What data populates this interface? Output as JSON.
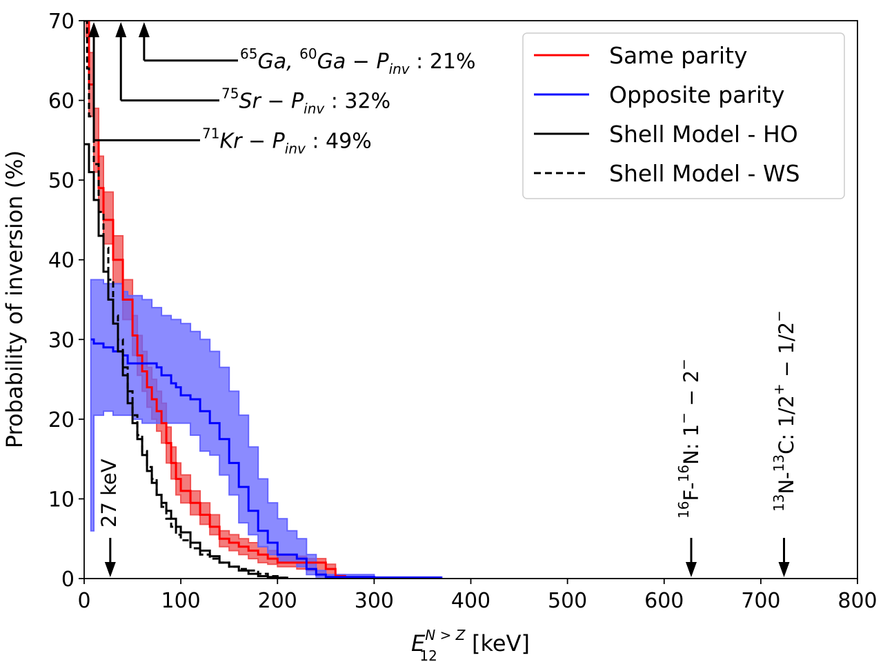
{
  "chart_data": {
    "type": "line",
    "xlabel": {
      "main": "E",
      "sup": "N > Z",
      "sub": "12",
      "unit": " [keV]"
    },
    "ylabel": "Probability of inversion (%)",
    "xlim": [
      0,
      800
    ],
    "ylim": [
      0,
      70
    ],
    "xticks": [
      0,
      100,
      200,
      300,
      400,
      500,
      600,
      700,
      800
    ],
    "yticks": [
      0,
      10,
      20,
      30,
      40,
      50,
      60,
      70
    ],
    "legend_position": "top-right",
    "series": [
      {
        "name": "Same parity",
        "color": "#ff0000",
        "dash": "solid",
        "band_color": "#f05050",
        "points": [
          [
            2,
            70
          ],
          [
            5,
            62
          ],
          [
            10,
            55
          ],
          [
            15,
            49
          ],
          [
            20,
            45
          ],
          [
            30,
            40
          ],
          [
            40,
            35
          ],
          [
            50,
            30.5
          ],
          [
            55,
            28
          ],
          [
            60,
            26
          ],
          [
            65,
            24
          ],
          [
            70,
            22.5
          ],
          [
            75,
            21
          ],
          [
            80,
            19.5
          ],
          [
            85,
            17
          ],
          [
            90,
            14.5
          ],
          [
            95,
            12.5
          ],
          [
            100,
            11
          ],
          [
            110,
            9.5
          ],
          [
            120,
            8
          ],
          [
            130,
            6.5
          ],
          [
            140,
            5
          ],
          [
            150,
            4.5
          ],
          [
            160,
            4
          ],
          [
            170,
            3.5
          ],
          [
            180,
            3
          ],
          [
            190,
            2.5
          ],
          [
            200,
            2
          ],
          [
            210,
            2
          ],
          [
            220,
            2
          ],
          [
            230,
            2
          ],
          [
            240,
            2
          ],
          [
            250,
            1.2
          ],
          [
            260,
            0.3
          ],
          [
            270,
            0
          ],
          [
            280,
            0
          ]
        ],
        "lower": [
          [
            2,
            68
          ],
          [
            5,
            58
          ],
          [
            10,
            51
          ],
          [
            15,
            46
          ],
          [
            20,
            42
          ],
          [
            30,
            37
          ],
          [
            40,
            32.5
          ],
          [
            50,
            28
          ],
          [
            55,
            25.5
          ],
          [
            60,
            23.5
          ],
          [
            65,
            21.5
          ],
          [
            70,
            20
          ],
          [
            75,
            18.5
          ],
          [
            80,
            17
          ],
          [
            85,
            14.5
          ],
          [
            90,
            12.5
          ],
          [
            95,
            10.5
          ],
          [
            100,
            9.5
          ],
          [
            110,
            8
          ],
          [
            120,
            6.8
          ],
          [
            130,
            5.5
          ],
          [
            140,
            4
          ],
          [
            150,
            3.5
          ],
          [
            160,
            3
          ],
          [
            170,
            2.5
          ],
          [
            180,
            2
          ],
          [
            190,
            1.8
          ],
          [
            200,
            1.5
          ],
          [
            210,
            1.5
          ],
          [
            220,
            1.2
          ],
          [
            230,
            1
          ],
          [
            240,
            0.5
          ],
          [
            250,
            0
          ],
          [
            260,
            0
          ]
        ],
        "upper": [
          [
            2,
            70
          ],
          [
            5,
            66
          ],
          [
            10,
            59
          ],
          [
            15,
            53
          ],
          [
            20,
            48.5
          ],
          [
            30,
            43
          ],
          [
            40,
            37.5
          ],
          [
            50,
            33
          ],
          [
            55,
            30.5
          ],
          [
            60,
            28.5
          ],
          [
            65,
            26.5
          ],
          [
            70,
            25
          ],
          [
            75,
            23.5
          ],
          [
            80,
            22
          ],
          [
            85,
            19
          ],
          [
            90,
            16.5
          ],
          [
            95,
            14.5
          ],
          [
            100,
            13
          ],
          [
            110,
            11
          ],
          [
            120,
            9.5
          ],
          [
            130,
            8
          ],
          [
            140,
            6
          ],
          [
            150,
            5.5
          ],
          [
            160,
            5
          ],
          [
            170,
            4.5
          ],
          [
            180,
            4
          ],
          [
            190,
            3.5
          ],
          [
            200,
            3
          ],
          [
            210,
            3
          ],
          [
            220,
            2.8
          ],
          [
            230,
            2.5
          ],
          [
            240,
            2.5
          ],
          [
            250,
            1.8
          ],
          [
            260,
            0.5
          ],
          [
            270,
            0
          ]
        ]
      },
      {
        "name": "Opposite parity",
        "color": "#0000ff",
        "dash": "solid",
        "band_color": "#6464ff",
        "points": [
          [
            7,
            30
          ],
          [
            10,
            29.5
          ],
          [
            20,
            29
          ],
          [
            30,
            28.5
          ],
          [
            40,
            28
          ],
          [
            45,
            27
          ],
          [
            60,
            27
          ],
          [
            70,
            27
          ],
          [
            75,
            26.5
          ],
          [
            80,
            25.5
          ],
          [
            90,
            24.5
          ],
          [
            95,
            24
          ],
          [
            100,
            23
          ],
          [
            110,
            22.5
          ],
          [
            120,
            21
          ],
          [
            130,
            19.5
          ],
          [
            140,
            17.5
          ],
          [
            150,
            14.5
          ],
          [
            160,
            11.5
          ],
          [
            170,
            8.5
          ],
          [
            180,
            6
          ],
          [
            190,
            4.5
          ],
          [
            200,
            3
          ],
          [
            210,
            3
          ],
          [
            220,
            2.5
          ],
          [
            230,
            1.2
          ],
          [
            240,
            0.5
          ],
          [
            250,
            0.2
          ],
          [
            260,
            0.2
          ],
          [
            300,
            0.1
          ],
          [
            370,
            0.1
          ]
        ],
        "lower": [
          [
            7,
            6
          ],
          [
            10,
            20.5
          ],
          [
            20,
            21
          ],
          [
            30,
            20.5
          ],
          [
            40,
            20.5
          ],
          [
            50,
            20
          ],
          [
            60,
            19.5
          ],
          [
            70,
            19.5
          ],
          [
            80,
            19.5
          ],
          [
            90,
            19.5
          ],
          [
            100,
            19.5
          ],
          [
            110,
            18
          ],
          [
            120,
            16
          ],
          [
            130,
            15.5
          ],
          [
            140,
            13
          ],
          [
            150,
            10.5
          ],
          [
            160,
            7
          ],
          [
            170,
            5.5
          ],
          [
            180,
            4
          ],
          [
            190,
            3
          ],
          [
            200,
            2
          ],
          [
            210,
            2
          ],
          [
            220,
            1.5
          ],
          [
            230,
            0.5
          ],
          [
            240,
            0.2
          ],
          [
            250,
            0
          ],
          [
            300,
            0
          ],
          [
            370,
            0
          ]
        ],
        "upper": [
          [
            7,
            37.5
          ],
          [
            10,
            37.5
          ],
          [
            20,
            37
          ],
          [
            30,
            37
          ],
          [
            40,
            36
          ],
          [
            45,
            35.5
          ],
          [
            60,
            35
          ],
          [
            70,
            34
          ],
          [
            80,
            33
          ],
          [
            90,
            32.5
          ],
          [
            95,
            32.5
          ],
          [
            100,
            32
          ],
          [
            110,
            31
          ],
          [
            120,
            30
          ],
          [
            130,
            28.5
          ],
          [
            140,
            26.5
          ],
          [
            150,
            23.5
          ],
          [
            160,
            20.5
          ],
          [
            170,
            16.5
          ],
          [
            180,
            12.5
          ],
          [
            190,
            9.5
          ],
          [
            200,
            7.5
          ],
          [
            210,
            6
          ],
          [
            220,
            5
          ],
          [
            230,
            3
          ],
          [
            240,
            1
          ],
          [
            250,
            0.5
          ],
          [
            300,
            0.2
          ],
          [
            370,
            0.2
          ]
        ]
      },
      {
        "name": "Shell Model - HO",
        "color": "#000000",
        "dash": "solid",
        "points": [
          [
            0,
            54.5
          ],
          [
            5,
            51
          ],
          [
            10,
            47.5
          ],
          [
            15,
            43
          ],
          [
            20,
            38.5
          ],
          [
            25,
            35
          ],
          [
            30,
            32
          ],
          [
            35,
            28.5
          ],
          [
            40,
            25.5
          ],
          [
            45,
            22
          ],
          [
            50,
            19.5
          ],
          [
            55,
            17.5
          ],
          [
            60,
            15.5
          ],
          [
            65,
            13.5
          ],
          [
            70,
            12
          ],
          [
            75,
            10.5
          ],
          [
            80,
            9.5
          ],
          [
            85,
            8.5
          ],
          [
            90,
            7.5
          ],
          [
            95,
            6.5
          ],
          [
            100,
            5.8
          ],
          [
            110,
            4.5
          ],
          [
            120,
            3.5
          ],
          [
            130,
            2.8
          ],
          [
            140,
            2
          ],
          [
            150,
            1.5
          ],
          [
            160,
            1
          ],
          [
            170,
            0.6
          ],
          [
            180,
            0.3
          ],
          [
            190,
            0.2
          ],
          [
            200,
            0.1
          ],
          [
            210,
            0
          ]
        ]
      },
      {
        "name": "Shell Model - WS",
        "color": "#000000",
        "dash": "dashed",
        "points": [
          [
            0,
            70
          ],
          [
            3,
            64
          ],
          [
            5,
            58
          ],
          [
            10,
            52
          ],
          [
            15,
            46
          ],
          [
            20,
            41.5
          ],
          [
            25,
            37.5
          ],
          [
            30,
            33
          ],
          [
            35,
            30
          ],
          [
            40,
            26.5
          ],
          [
            45,
            23.5
          ],
          [
            50,
            20.5
          ],
          [
            55,
            18
          ],
          [
            60,
            16
          ],
          [
            65,
            14
          ],
          [
            70,
            12.5
          ],
          [
            75,
            10.5
          ],
          [
            80,
            9
          ],
          [
            85,
            7.5
          ],
          [
            90,
            6.5
          ],
          [
            95,
            5.5
          ],
          [
            100,
            4.8
          ],
          [
            110,
            3.8
          ],
          [
            120,
            3
          ],
          [
            130,
            2.5
          ],
          [
            140,
            2
          ],
          [
            150,
            1.5
          ],
          [
            160,
            1.2
          ],
          [
            170,
            1
          ],
          [
            180,
            0.6
          ],
          [
            190,
            0.3
          ],
          [
            200,
            0.1
          ],
          [
            210,
            0
          ]
        ]
      }
    ],
    "annotations": [
      {
        "id": "ga",
        "text_parts": [
          "65",
          "Ga, ",
          "60",
          "Ga",
          " − P",
          "inv",
          " : 21%"
        ],
        "x": 62,
        "y": 65
      },
      {
        "id": "sr",
        "text_parts": [
          "75",
          "Sr",
          " − P",
          "inv",
          " : 32%"
        ],
        "x": 38,
        "y": 60
      },
      {
        "id": "kr",
        "text_parts": [
          "71",
          "Kr",
          " − P",
          "inv",
          " : 49%"
        ],
        "x": 10,
        "y": 55
      }
    ],
    "markers": [
      {
        "id": "kev27",
        "x": 27,
        "label": "27 keV"
      },
      {
        "id": "f16",
        "x": 628,
        "label_parts": [
          "16",
          "F-",
          "16",
          "N: 1",
          "−",
          " − 2",
          "−"
        ]
      },
      {
        "id": "n13",
        "x": 724,
        "label_parts": [
          "13",
          "N-",
          "13",
          "C: 1/2",
          "+",
          " − 1/2",
          "−"
        ]
      }
    ]
  }
}
